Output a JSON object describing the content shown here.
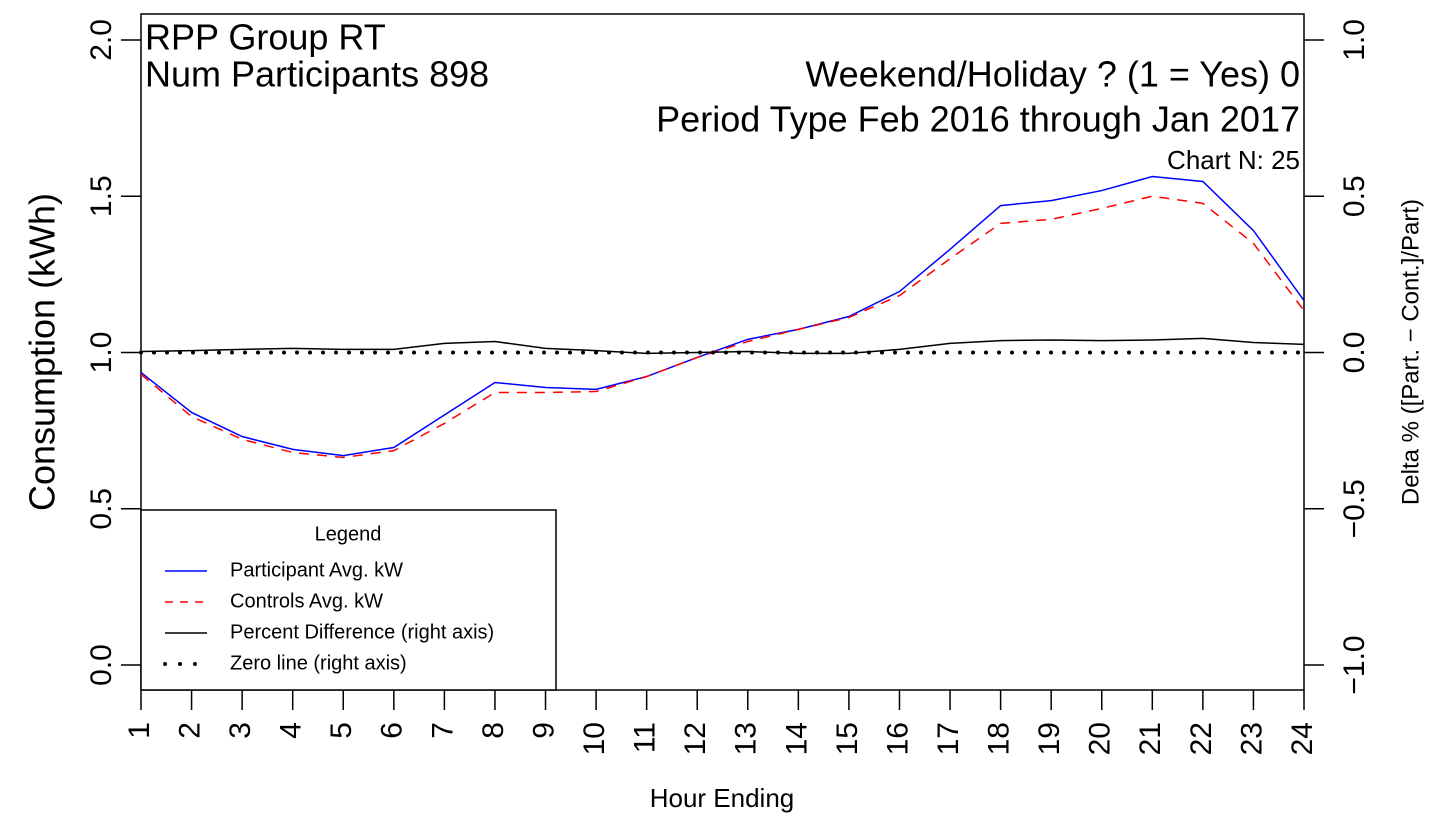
{
  "chart_data": {
    "type": "line",
    "annotations": [
      "RPP Group RT",
      "Num Participants 898",
      "Weekend/Holiday ? (1 = Yes) 0",
      "Period Type Feb 2016 through Jan 2017",
      "Chart N: 25"
    ],
    "x_label": "Hour Ending",
    "y_label": "Consumption (kWh)",
    "y2_label": "Delta % ([Part. − Cont.]/Part)",
    "legend_title": "Legend",
    "legend": "bottom-left",
    "x": [
      1,
      2,
      3,
      4,
      5,
      6,
      7,
      8,
      9,
      10,
      11,
      12,
      13,
      14,
      15,
      16,
      17,
      18,
      19,
      20,
      21,
      22,
      23,
      24
    ],
    "xlim": [
      1,
      24
    ],
    "xticks": [
      1,
      2,
      3,
      4,
      5,
      6,
      7,
      8,
      9,
      10,
      11,
      12,
      13,
      14,
      15,
      16,
      17,
      18,
      19,
      20,
      21,
      22,
      23,
      24
    ],
    "ylim": [
      -0.08,
      2.083
    ],
    "yticks": [
      {
        "value": 0,
        "label": "0.0"
      },
      0.5,
      {
        "value": 1,
        "label": "1.0"
      },
      1.5,
      {
        "value": 2,
        "label": "2.0"
      }
    ],
    "y2lim": [
      -1.08,
      1.083
    ],
    "y2ticks": [
      {
        "value": -1,
        "label": "−1.0"
      },
      {
        "value": -0.5,
        "label": "−0.5"
      },
      {
        "value": 0,
        "label": "0.0"
      },
      0.5,
      {
        "value": 1,
        "label": "1.0"
      }
    ],
    "series": [
      {
        "name": "Participant Avg. kW",
        "color": "#0000ff",
        "linestyle": "solid",
        "values": [
          0.936,
          0.808,
          0.731,
          0.69,
          0.67,
          0.696,
          0.8,
          0.904,
          0.888,
          0.882,
          0.923,
          0.984,
          1.042,
          1.074,
          1.115,
          1.195,
          1.33,
          1.47,
          1.486,
          1.518,
          1.563,
          1.547,
          1.39,
          1.166
        ]
      },
      {
        "name": "Controls Avg. kW",
        "color": "#ff0000",
        "linestyle": "dashed",
        "values": [
          0.93,
          0.795,
          0.722,
          0.68,
          0.664,
          0.686,
          0.773,
          0.872,
          0.872,
          0.875,
          0.923,
          0.984,
          1.035,
          1.074,
          1.112,
          1.182,
          1.3,
          1.413,
          1.426,
          1.461,
          1.5,
          1.477,
          1.349,
          1.134
        ]
      },
      {
        "name": "Percent Difference (right axis)",
        "color": "#000000",
        "linestyle": "solid",
        "axis": "y2",
        "values": [
          0.003,
          0.006,
          0.01,
          0.013,
          0.01,
          0.01,
          0.029,
          0.035,
          0.013,
          0.006,
          -0.003,
          0,
          0.003,
          -0.003,
          -0.003,
          0.01,
          0.029,
          0.038,
          0.04,
          0.038,
          0.04,
          0.045,
          0.032,
          0.026
        ]
      },
      {
        "name": "Zero line (right axis)",
        "color": "#000000",
        "linestyle": "dotted",
        "axis": "y2",
        "values": [
          0,
          0,
          0,
          0,
          0,
          0,
          0,
          0,
          0,
          0,
          0,
          0,
          0,
          0,
          0,
          0,
          0,
          0,
          0,
          0,
          0,
          0,
          0,
          0
        ]
      }
    ]
  }
}
